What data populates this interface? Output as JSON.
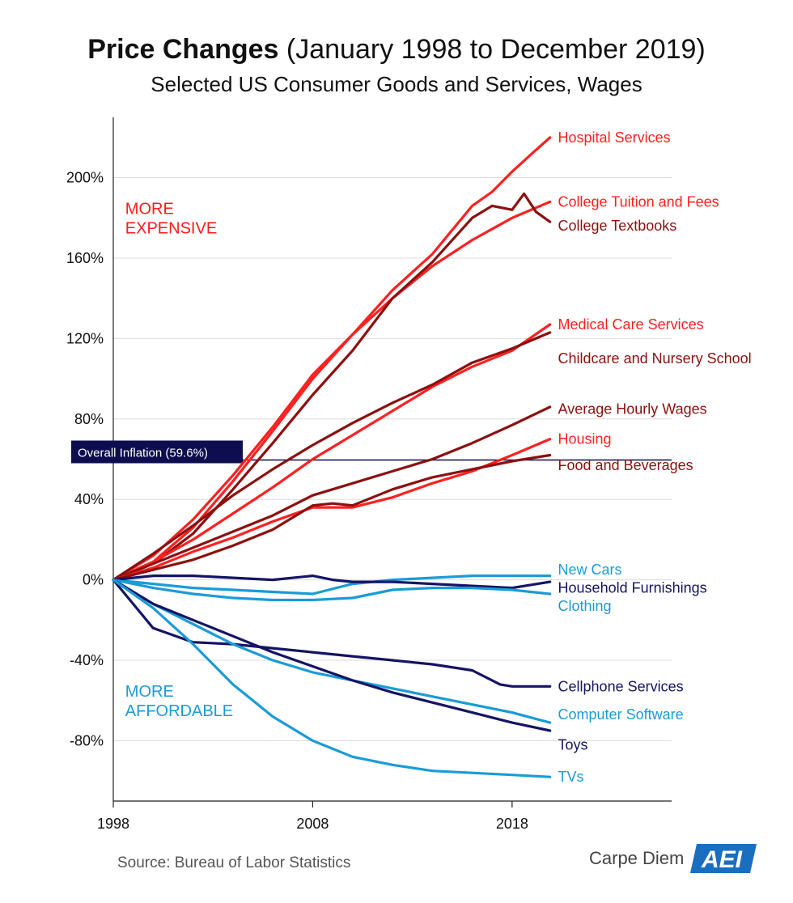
{
  "header": {
    "title_bold": "Price Changes",
    "title_rest": "(January 1998 to December 2019)",
    "subtitle": "Selected US Consumer Goods and Services, Wages"
  },
  "footer": {
    "source": "Source: Bureau of Labor Statistics",
    "brand": "Carpe Diem",
    "logo_text": "AEI"
  },
  "chart_data": {
    "type": "line",
    "xlim": [
      1998,
      2026
    ],
    "ylim": [
      -110,
      230
    ],
    "x_ticks": [
      {
        "value": 1998,
        "label": "1998"
      },
      {
        "value": 2008,
        "label": "2008"
      },
      {
        "value": 2018,
        "label": "2018"
      }
    ],
    "y_ticks": [
      {
        "value": 200,
        "label": "200%"
      },
      {
        "value": 160,
        "label": "160%"
      },
      {
        "value": 120,
        "label": "120%"
      },
      {
        "value": 80,
        "label": "80%"
      },
      {
        "value": 40,
        "label": "40%"
      },
      {
        "value": 0,
        "label": "0%"
      },
      {
        "value": -40,
        "label": "-40%"
      },
      {
        "value": -80,
        "label": "-80%"
      }
    ],
    "grid": "horizontal",
    "annotations": [
      {
        "name": "more-expensive",
        "lines": [
          "MORE",
          "EXPENSIVE"
        ],
        "x": 1998.6,
        "y": 182,
        "color": "#ff1a1a"
      },
      {
        "name": "more-affordable",
        "lines": [
          "MORE",
          "AFFORDABLE"
        ],
        "x": 1998.6,
        "y": -58,
        "color": "#1a9bd7"
      }
    ],
    "reference_line": {
      "label": "Overall Inflation (59.6%)",
      "value": 59.6,
      "color": "#0d0d4f"
    },
    "series": [
      {
        "name": "Hospital Services",
        "color": "#ff2020",
        "label_y": 220,
        "x": [
          1998,
          2000,
          2002,
          2004,
          2006,
          2008,
          2010,
          2012,
          2014,
          2016,
          2017,
          2018,
          2019,
          2019.9
        ],
        "y": [
          0,
          12,
          30,
          52,
          76,
          102,
          122,
          144,
          162,
          186,
          193,
          203,
          212,
          220
        ]
      },
      {
        "name": "College Tuition and Fees",
        "color": "#ff2020",
        "label_y": 188,
        "x": [
          1998,
          2000,
          2002,
          2004,
          2006,
          2008,
          2010,
          2012,
          2014,
          2016,
          2018,
          2019.9
        ],
        "y": [
          0,
          9,
          26,
          49,
          74,
          100,
          122,
          140,
          156,
          169,
          180,
          188
        ]
      },
      {
        "name": "College Textbooks",
        "color": "#8c1010",
        "label_y": 176,
        "x": [
          1998,
          2000,
          2002,
          2004,
          2006,
          2008,
          2010,
          2012,
          2014,
          2016,
          2017,
          2018,
          2018.6,
          2019.2,
          2019.9
        ],
        "y": [
          0,
          8,
          23,
          45,
          68,
          92,
          114,
          140,
          158,
          180,
          186,
          184,
          192,
          183,
          178
        ]
      },
      {
        "name": "Medical Care Services",
        "color": "#ff2020",
        "label_y": 127,
        "x": [
          1998,
          2000,
          2002,
          2004,
          2006,
          2008,
          2010,
          2012,
          2014,
          2016,
          2018,
          2019.9
        ],
        "y": [
          0,
          9,
          20,
          33,
          46,
          60,
          72,
          84,
          96,
          106,
          114,
          127
        ]
      },
      {
        "name": "Childcare and Nursery School",
        "color": "#8c1010",
        "label_y": 110,
        "x": [
          1998,
          2000,
          2002,
          2004,
          2006,
          2008,
          2010,
          2012,
          2014,
          2016,
          2018,
          2019.9
        ],
        "y": [
          0,
          13,
          27,
          42,
          55,
          67,
          78,
          88,
          97,
          108,
          115,
          123
        ]
      },
      {
        "name": "Average Hourly Wages",
        "color": "#8c1010",
        "label_y": 85,
        "x": [
          1998,
          2000,
          2002,
          2004,
          2006,
          2008,
          2010,
          2012,
          2014,
          2016,
          2018,
          2019.9
        ],
        "y": [
          0,
          8,
          16,
          24,
          32,
          42,
          48,
          54,
          60,
          68,
          77,
          86
        ]
      },
      {
        "name": "Housing",
        "color": "#ff2020",
        "label_y": 70,
        "x": [
          1998,
          2000,
          2002,
          2004,
          2006,
          2008,
          2009,
          2010,
          2012,
          2014,
          2016,
          2018,
          2019.9
        ],
        "y": [
          0,
          6,
          14,
          21,
          29,
          36,
          36,
          36,
          41,
          48,
          54,
          62,
          70
        ]
      },
      {
        "name": "Food and Beverages",
        "color": "#8c1010",
        "label_y": 57,
        "x": [
          1998,
          2000,
          2002,
          2004,
          2006,
          2008,
          2009,
          2010,
          2012,
          2014,
          2016,
          2018,
          2019.9
        ],
        "y": [
          0,
          5,
          10,
          17,
          25,
          37,
          38,
          37,
          45,
          51,
          55,
          59,
          62
        ]
      },
      {
        "name": "New Cars",
        "color": "#1a9bd7",
        "label_y": 5,
        "x": [
          1998,
          2000,
          2002,
          2004,
          2006,
          2008,
          2010,
          2012,
          2014,
          2016,
          2018,
          2019.9
        ],
        "y": [
          0,
          -2,
          -4,
          -5,
          -6,
          -7,
          -2,
          0,
          1,
          2,
          2,
          2
        ]
      },
      {
        "name": "Household Furnishings",
        "color": "#141466",
        "label_y": -4,
        "x": [
          1998,
          2000,
          2002,
          2004,
          2006,
          2008,
          2009,
          2010,
          2012,
          2014,
          2016,
          2018,
          2019.9
        ],
        "y": [
          0,
          2,
          2,
          1,
          0,
          2,
          0,
          -1,
          -1,
          -2,
          -3,
          -4,
          -1
        ]
      },
      {
        "name": "Clothing",
        "color": "#1a9bd7",
        "label_y": -13,
        "x": [
          1998,
          2000,
          2002,
          2004,
          2006,
          2008,
          2010,
          2012,
          2014,
          2016,
          2018,
          2019.9
        ],
        "y": [
          0,
          -4,
          -7,
          -9,
          -10,
          -10,
          -9,
          -5,
          -4,
          -4,
          -5,
          -7
        ]
      },
      {
        "name": "Cellphone Services",
        "color": "#141466",
        "label_y": -53,
        "x": [
          1998,
          1999,
          2000,
          2002,
          2004,
          2006,
          2008,
          2010,
          2012,
          2014,
          2016,
          2017.4,
          2018,
          2019.9
        ],
        "y": [
          0,
          -12,
          -24,
          -31,
          -32,
          -34,
          -36,
          -38,
          -40,
          -42,
          -45,
          -52,
          -53,
          -53
        ]
      },
      {
        "name": "Computer Software",
        "color": "#1a9bd7",
        "label_y": -67,
        "x": [
          1998,
          2000,
          2002,
          2004,
          2006,
          2008,
          2010,
          2012,
          2014,
          2016,
          2018,
          2019.9
        ],
        "y": [
          0,
          -12,
          -22,
          -32,
          -40,
          -46,
          -50,
          -54,
          -58,
          -62,
          -66,
          -71
        ]
      },
      {
        "name": "Toys",
        "color": "#141466",
        "label_y": -82,
        "x": [
          1998,
          2000,
          2002,
          2004,
          2006,
          2008,
          2010,
          2012,
          2014,
          2016,
          2018,
          2019.9
        ],
        "y": [
          0,
          -12,
          -20,
          -28,
          -36,
          -43,
          -50,
          -56,
          -61,
          -66,
          -71,
          -75
        ]
      },
      {
        "name": "TVs",
        "color": "#1a9bd7",
        "label_y": -98,
        "x": [
          1998,
          2000,
          2002,
          2004,
          2006,
          2008,
          2010,
          2012,
          2014,
          2016,
          2018,
          2019.9
        ],
        "y": [
          0,
          -14,
          -32,
          -52,
          -68,
          -80,
          -88,
          -92,
          -95,
          -96,
          -97,
          -98
        ]
      }
    ]
  }
}
